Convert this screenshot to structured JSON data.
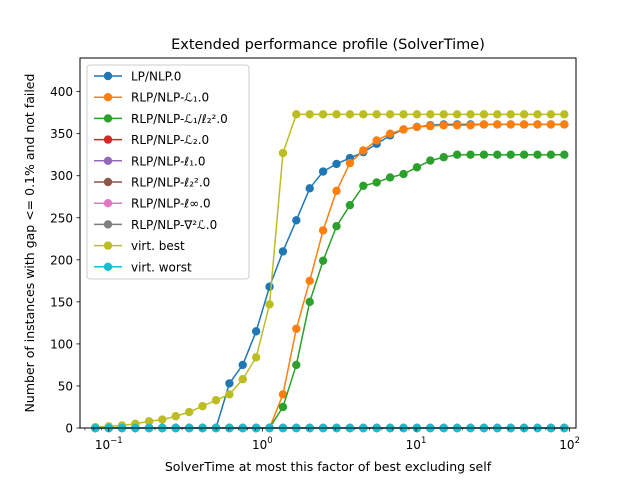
{
  "chart_data": {
    "type": "line",
    "title": "Extended performance profile (SolverTime)",
    "xlabel": "SolverTime at most this factor of best excluding self",
    "ylabel": "Number of instances with gap <= 0.1% and not failed",
    "xscale": "log",
    "xlim": [
      0.065,
      110
    ],
    "ylim": [
      0,
      440
    ],
    "x_ticks": [
      {
        "value": 0.1,
        "base": "10",
        "exp": "−1"
      },
      {
        "value": 1,
        "base": "10",
        "exp": "0"
      },
      {
        "value": 10,
        "base": "10",
        "exp": "1"
      },
      {
        "value": 100,
        "base": "10",
        "exp": "2"
      }
    ],
    "y_ticks": [
      0,
      50,
      100,
      150,
      200,
      250,
      300,
      350,
      400
    ],
    "y_tick_labels": [
      "0",
      "50",
      "100",
      "150",
      "200",
      "250",
      "300",
      "350",
      "400"
    ],
    "legend_position": "top-left",
    "x": [
      0.0818,
      0.1,
      0.122,
      0.149,
      0.183,
      0.223,
      0.273,
      0.334,
      0.408,
      0.499,
      0.61,
      0.745,
      0.911,
      1.113,
      1.361,
      1.663,
      2.033,
      2.485,
      3.038,
      3.714,
      4.54,
      5.549,
      6.784,
      8.292,
      10.137,
      12.391,
      15.147,
      18.517,
      22.635,
      27.67,
      33.825,
      41.349,
      50.546,
      61.789,
      75.532,
      92.333
    ],
    "series": [
      {
        "name": "LP/NLP.0",
        "color": "#1f77b4",
        "values": [
          0,
          0,
          0,
          0,
          0,
          0,
          0,
          0,
          0,
          0,
          53,
          75,
          115,
          168,
          210,
          247,
          285,
          305,
          314,
          321,
          328,
          338,
          348,
          355,
          358,
          360,
          361,
          361,
          361,
          361,
          361,
          361,
          361,
          361,
          361,
          361
        ]
      },
      {
        "name": "RLP/NLP-ℒ₁.0",
        "color": "#ff7f0e",
        "values": [
          0,
          0,
          0,
          0,
          0,
          0,
          0,
          0,
          0,
          0,
          0,
          0,
          0,
          0,
          40,
          118,
          175,
          235,
          282,
          315,
          330,
          342,
          350,
          355,
          358,
          359,
          360,
          360,
          360,
          361,
          361,
          361,
          361,
          361,
          361,
          361
        ]
      },
      {
        "name": "RLP/NLP-ℒ₁/ℓ₂².0",
        "color": "#2ca02c",
        "values": [
          0,
          0,
          0,
          0,
          0,
          0,
          0,
          0,
          0,
          0,
          0,
          0,
          0,
          0,
          25,
          75,
          150,
          199,
          240,
          265,
          288,
          292,
          298,
          302,
          310,
          318,
          322,
          325,
          325,
          325,
          325,
          325,
          325,
          325,
          325,
          325
        ]
      },
      {
        "name": "RLP/NLP-ℒ₂.0",
        "color": "#d62728",
        "values": [
          0,
          0,
          0,
          0,
          0,
          0,
          0,
          0,
          0,
          0,
          0,
          0,
          0,
          0,
          0,
          0,
          0,
          0,
          0,
          0,
          0,
          0,
          0,
          0,
          0,
          0,
          0,
          0,
          0,
          0,
          0,
          0,
          0,
          0,
          0,
          0
        ]
      },
      {
        "name": "RLP/NLP-ℓ₁.0",
        "color": "#9467bd",
        "values": [
          0,
          0,
          0,
          0,
          0,
          0,
          0,
          0,
          0,
          0,
          0,
          0,
          0,
          0,
          0,
          0,
          0,
          0,
          0,
          0,
          0,
          0,
          0,
          0,
          0,
          0,
          0,
          0,
          0,
          0,
          0,
          0,
          0,
          0,
          0,
          0
        ]
      },
      {
        "name": "RLP/NLP-ℓ₂².0",
        "color": "#8c564b",
        "values": [
          0,
          0,
          0,
          0,
          0,
          0,
          0,
          0,
          0,
          0,
          0,
          0,
          0,
          0,
          0,
          0,
          0,
          0,
          0,
          0,
          0,
          0,
          0,
          0,
          0,
          0,
          0,
          0,
          0,
          0,
          0,
          0,
          0,
          0,
          0,
          0
        ]
      },
      {
        "name": "RLP/NLP-ℓ∞.0",
        "color": "#e377c2",
        "values": [
          0,
          0,
          0,
          0,
          0,
          0,
          0,
          0,
          0,
          0,
          0,
          0,
          0,
          0,
          0,
          0,
          0,
          0,
          0,
          0,
          0,
          0,
          0,
          0,
          0,
          0,
          0,
          0,
          0,
          0,
          0,
          0,
          0,
          0,
          0,
          0
        ]
      },
      {
        "name": "RLP/NLP-∇²ℒ.0",
        "color": "#7f7f7f",
        "values": [
          0,
          0,
          0,
          0,
          0,
          0,
          0,
          0,
          0,
          0,
          0,
          0,
          0,
          0,
          0,
          0,
          0,
          0,
          0,
          0,
          0,
          0,
          0,
          0,
          0,
          0,
          0,
          0,
          0,
          0,
          0,
          0,
          0,
          0,
          0,
          0
        ]
      },
      {
        "name": "virt. best",
        "color": "#bcbd22",
        "values": [
          1,
          2,
          3,
          5,
          8,
          10,
          14,
          19,
          26,
          33,
          40,
          58,
          84,
          147,
          327,
          373,
          373,
          373,
          373,
          373,
          373,
          373,
          373,
          373,
          373,
          373,
          373,
          373,
          373,
          373,
          373,
          373,
          373,
          373,
          373,
          373
        ]
      },
      {
        "name": "virt. worst",
        "color": "#17becf",
        "values": [
          0,
          0,
          0,
          0,
          0,
          0,
          0,
          0,
          0,
          0,
          0,
          0,
          0,
          0,
          0,
          0,
          0,
          0,
          0,
          0,
          0,
          0,
          0,
          0,
          0,
          0,
          0,
          0,
          0,
          0,
          0,
          0,
          0,
          0,
          0,
          0
        ]
      }
    ]
  }
}
